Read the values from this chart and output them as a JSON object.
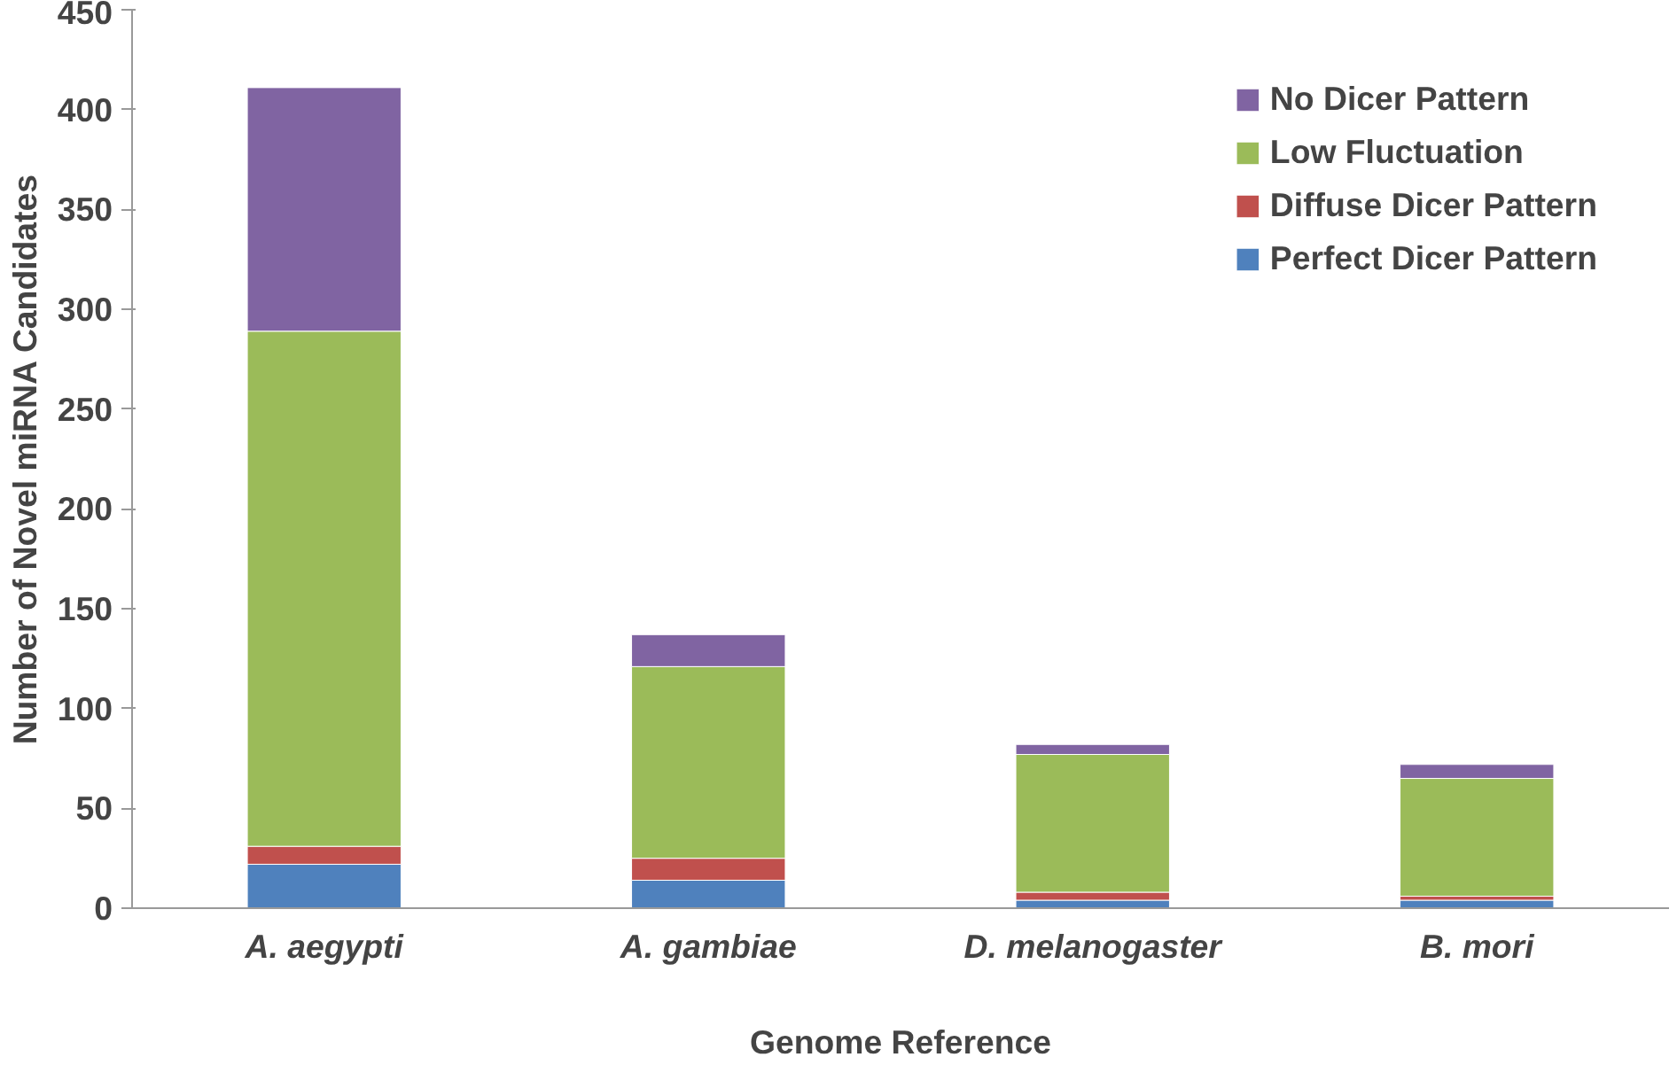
{
  "chart_data": {
    "type": "bar",
    "stacked": true,
    "xlabel": "Genome Reference",
    "ylabel": "Number of Novel miRNA Candidates",
    "categories": [
      "A. aegypti",
      "A. gambiae",
      "D. melanogaster",
      "B. mori"
    ],
    "series": [
      {
        "name": "Perfect Dicer Pattern",
        "color": "#4f81bd",
        "values": [
          22,
          14,
          4,
          4
        ]
      },
      {
        "name": "Diffuse Dicer Pattern",
        "color": "#c0504d",
        "values": [
          9,
          11,
          4,
          2
        ]
      },
      {
        "name": "Low Fluctuation",
        "color": "#9bbb59",
        "values": [
          258,
          96,
          69,
          59
        ]
      },
      {
        "name": "No Dicer Pattern",
        "color": "#8064a2",
        "values": [
          122,
          16,
          5,
          7
        ]
      }
    ],
    "ylim": [
      0,
      450
    ],
    "yticks": [
      0,
      50,
      100,
      150,
      200,
      250,
      300,
      350,
      400,
      450
    ],
    "grid": false,
    "legend": "right"
  }
}
